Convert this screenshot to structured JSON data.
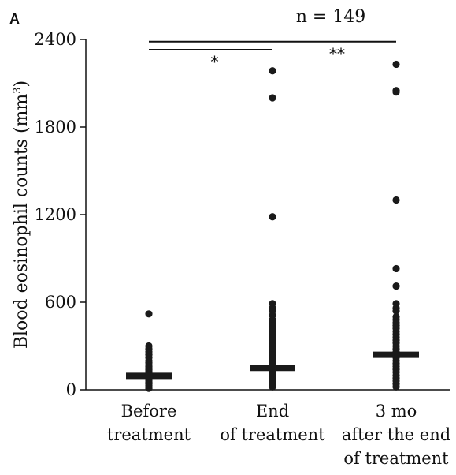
{
  "panel_label": "A",
  "chart_data": {
    "type": "scatter",
    "title": "n = 149",
    "ylabel": "Blood eosinophil counts (mm",
    "ylabel_sup": "3",
    "ylabel_close": ")",
    "ylim": [
      0,
      2400
    ],
    "yticks": [
      0,
      600,
      1200,
      1800,
      2400
    ],
    "grid": false,
    "categories": [
      {
        "lines": [
          "Before",
          "treatment"
        ]
      },
      {
        "lines": [
          "End",
          "of treatment"
        ]
      },
      {
        "lines": [
          "3 mo",
          "after the end",
          "of treatment"
        ]
      }
    ],
    "series": [
      {
        "median": 95,
        "values": [
          520,
          300,
          280,
          260,
          240,
          220,
          200,
          185,
          170,
          160,
          150,
          140,
          130,
          120,
          110,
          100,
          90,
          80,
          70,
          60,
          50,
          40,
          30,
          20,
          10
        ]
      },
      {
        "median": 150,
        "values": [
          2185,
          2000,
          1185,
          590,
          560,
          540,
          510,
          480,
          460,
          440,
          420,
          400,
          380,
          360,
          340,
          320,
          300,
          280,
          260,
          240,
          220,
          200,
          180,
          160,
          140,
          120,
          100,
          80,
          60,
          40,
          20
        ]
      },
      {
        "median": 240,
        "values": [
          2230,
          2050,
          2040,
          1300,
          830,
          710,
          590,
          560,
          540,
          500,
          480,
          460,
          440,
          420,
          400,
          380,
          360,
          340,
          320,
          300,
          280,
          260,
          240,
          220,
          200,
          180,
          160,
          140,
          120,
          100,
          80,
          60,
          40,
          20
        ]
      }
    ],
    "comparisons": [
      {
        "from": 0,
        "to": 1,
        "label": "*",
        "y_value": 2330
      },
      {
        "from": 0,
        "to": 2,
        "label": "**",
        "y_value": 2385
      }
    ]
  }
}
